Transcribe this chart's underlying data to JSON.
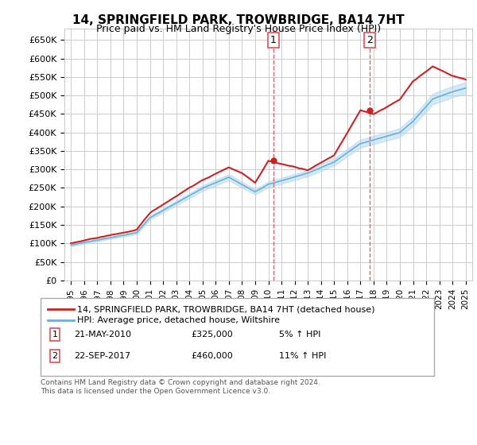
{
  "title": "14, SPRINGFIELD PARK, TROWBRIDGE, BA14 7HT",
  "subtitle": "Price paid vs. HM Land Registry's House Price Index (HPI)",
  "title_fontsize": 11,
  "subtitle_fontsize": 9,
  "ylim": [
    0,
    680000
  ],
  "yticks": [
    0,
    50000,
    100000,
    150000,
    200000,
    250000,
    300000,
    350000,
    400000,
    450000,
    500000,
    550000,
    600000,
    650000
  ],
  "ytick_labels": [
    "£0",
    "£50K",
    "£100K",
    "£150K",
    "£200K",
    "£250K",
    "£300K",
    "£350K",
    "£400K",
    "£450K",
    "£500K",
    "£550K",
    "£600K",
    "£650K"
  ],
  "hpi_color": "#6ab0d8",
  "hpi_fill_color": "#add5ee",
  "price_color": "#cc2222",
  "vline_color": "#e05050",
  "background_color": "#ffffff",
  "grid_color": "#cccccc",
  "legend_label_price": "14, SPRINGFIELD PARK, TROWBRIDGE, BA14 7HT (detached house)",
  "legend_label_hpi": "HPI: Average price, detached house, Wiltshire",
  "annotation1_label": "1",
  "annotation1_date": "21-MAY-2010",
  "annotation1_price": "£325,000",
  "annotation1_hpi": "5% ↑ HPI",
  "annotation2_label": "2",
  "annotation2_date": "22-SEP-2017",
  "annotation2_price": "£460,000",
  "annotation2_hpi": "11% ↑ HPI",
  "footnote": "Contains HM Land Registry data © Crown copyright and database right 2024.\nThis data is licensed under the Open Government Licence v3.0.",
  "sale1_year_val": 2010.37,
  "sale1_price": 325000,
  "sale2_year_val": 2017.71,
  "sale2_price": 460000
}
